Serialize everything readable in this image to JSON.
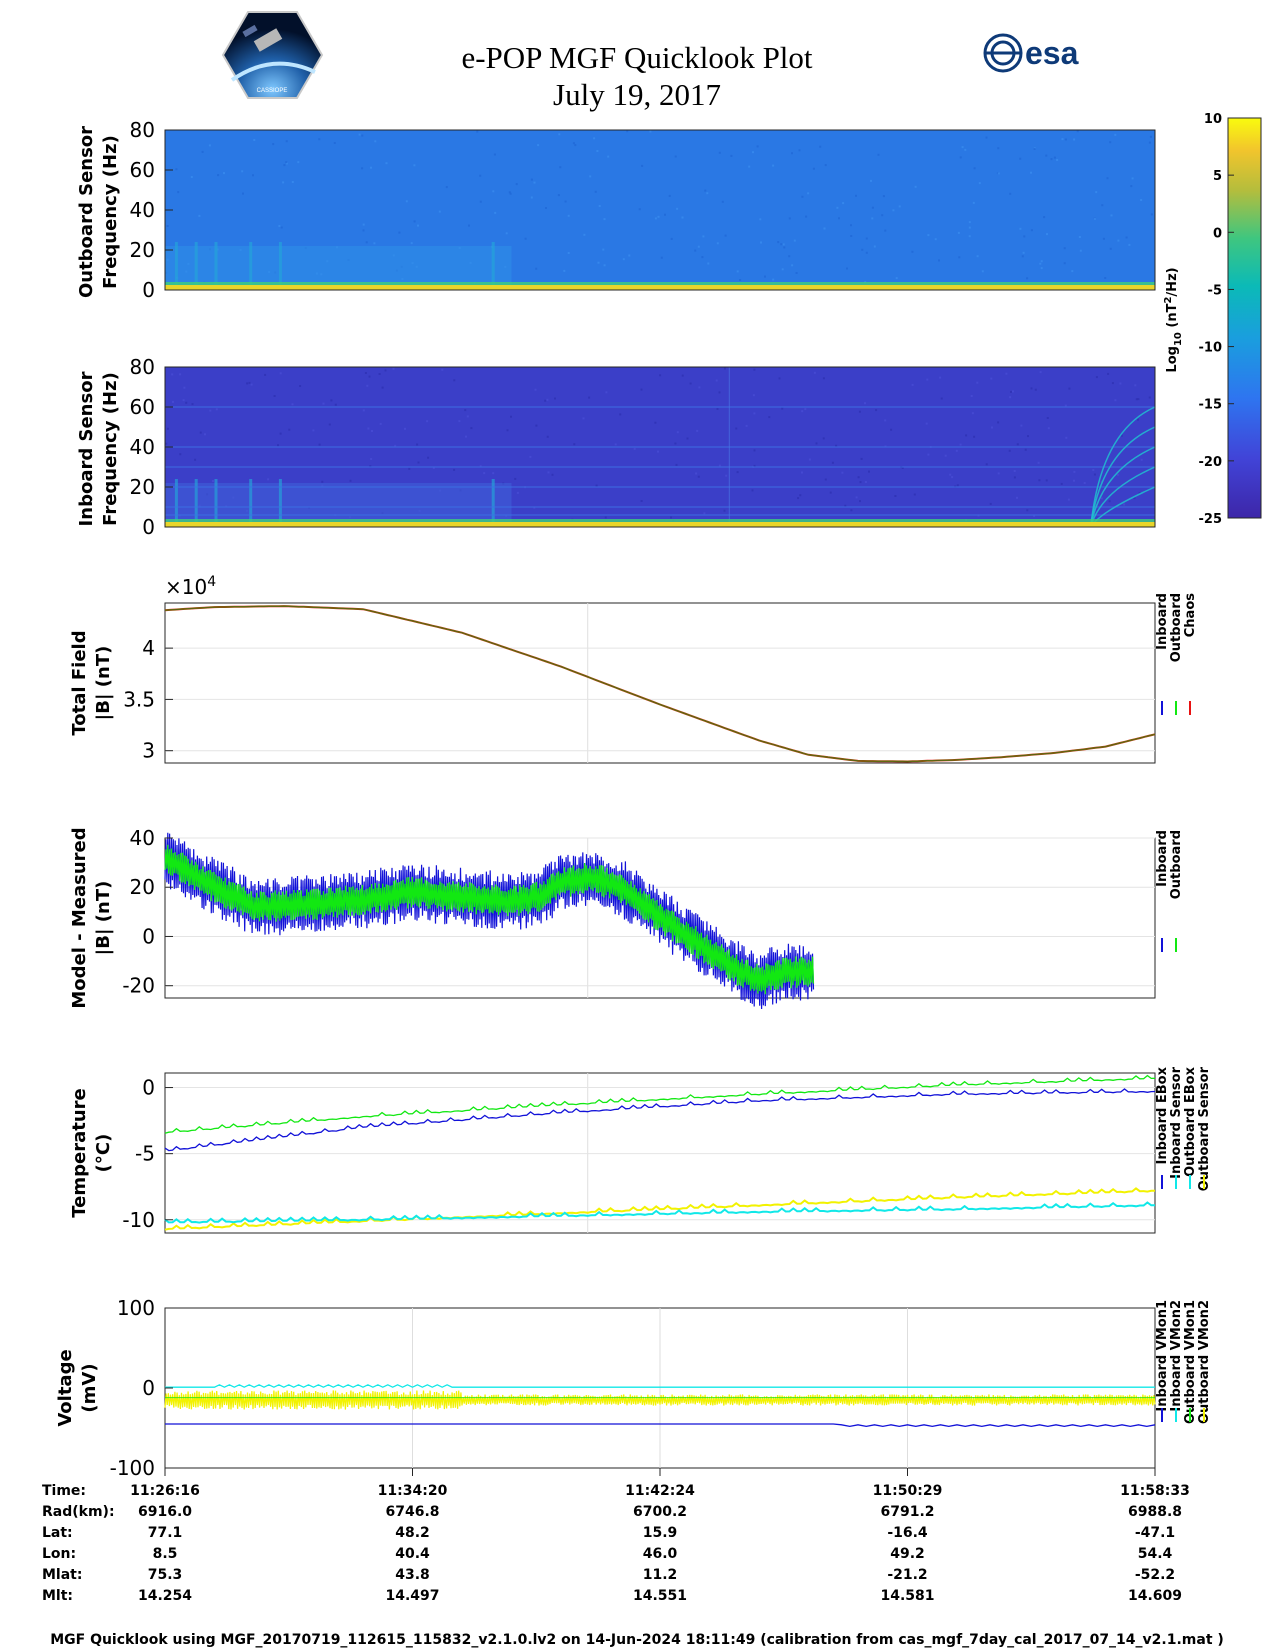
{
  "header": {
    "title": "e-POP MGF Quicklook Plot",
    "date": "July 19, 2017",
    "esa_logo_text": "esa",
    "cassiope_logo_text": "CASSIOPE"
  },
  "colors": {
    "inboard": "#1212d8",
    "outboard": "#12e812",
    "chaos": "#e81212",
    "cyan": "#10e8e8",
    "yellow": "#f2f200",
    "spec_outboard_bg": "#2a78e4",
    "spec_inboard_bg": "#3b3fc8"
  },
  "colorbar": {
    "label_main": "Log",
    "label_sub": "10",
    "label_rest": " (nT",
    "label_sup": "2",
    "label_end": "/Hz)",
    "ticks": [
      "10",
      "5",
      "0",
      "-5",
      "-10",
      "-15",
      "-20",
      "-25"
    ],
    "range": [
      -25,
      10
    ]
  },
  "chart_data": [
    {
      "type": "heatmap",
      "name": "outboard-spectrogram",
      "ylabel_line1": "Outboard Sensor",
      "ylabel_line2": "Frequency (Hz)",
      "ylim": [
        0,
        80
      ],
      "yticks": [
        "80",
        "60",
        "40",
        "20",
        "0"
      ],
      "background_level": -11,
      "low_freq_level": 8
    },
    {
      "type": "heatmap",
      "name": "inboard-spectrogram",
      "ylabel_line1": "Inboard Sensor",
      "ylabel_line2": "Frequency (Hz)",
      "ylim": [
        0,
        80
      ],
      "yticks": [
        "80",
        "60",
        "40",
        "20",
        "0"
      ],
      "background_level": -22,
      "low_freq_level": 8
    },
    {
      "type": "line",
      "name": "total-field",
      "ylabel_line1": "Total Field",
      "ylabel_line2": "|B| (nT)",
      "exponent_base": "×10",
      "exponent_power": "4",
      "ylim": [
        2.88,
        4.44
      ],
      "yticks": [
        "4",
        "3.5",
        "3"
      ],
      "legend": [
        "Inboard",
        "Outboard",
        "Chaos"
      ],
      "x": [
        0,
        0.05,
        0.12,
        0.2,
        0.3,
        0.4,
        0.5,
        0.6,
        0.65,
        0.7,
        0.75,
        0.8,
        0.85,
        0.9,
        0.95,
        1.0
      ],
      "y": [
        4.37,
        4.4,
        4.41,
        4.38,
        4.15,
        3.82,
        3.45,
        3.1,
        2.96,
        2.9,
        2.895,
        2.91,
        2.94,
        2.98,
        3.04,
        3.16
      ]
    },
    {
      "type": "line",
      "name": "model-minus-measured",
      "ylabel_line1": "Model - Measured",
      "ylabel_line2": "|B| (nT)",
      "ylim": [
        -25,
        40
      ],
      "yticks": [
        "40",
        "20",
        "0",
        "-20"
      ],
      "legend": [
        "Inboard",
        "Outboard"
      ],
      "x_end": 0.655,
      "x": [
        0,
        0.04,
        0.09,
        0.15,
        0.2,
        0.25,
        0.3,
        0.35,
        0.38,
        0.4,
        0.43,
        0.46,
        0.5,
        0.55,
        0.58,
        0.6,
        0.62,
        0.655
      ],
      "y": [
        32,
        22,
        12,
        13,
        15,
        18,
        16,
        14,
        16,
        22,
        24,
        20,
        8,
        -6,
        -14,
        -18,
        -15,
        -14
      ]
    },
    {
      "type": "line",
      "name": "temperature",
      "ylabel_line1": "Temperature",
      "ylabel_line2": "(°C)",
      "ylim": [
        -11,
        1.1
      ],
      "yticks": [
        "0",
        "-5",
        "-10"
      ],
      "legend": [
        "Inboard EBox",
        "Inboard Sensor",
        "Outboard EBox",
        "Outboard Sensor"
      ],
      "series": [
        {
          "name": "Inboard EBox",
          "x": [
            0,
            0.2,
            0.4,
            0.6,
            0.8,
            1.0
          ],
          "y": [
            -3.4,
            -2.2,
            -1.3,
            -0.5,
            0.2,
            0.7
          ]
        },
        {
          "name": "Inboard Sensor",
          "x": [
            0,
            0.2,
            0.4,
            0.6,
            0.8,
            1.0
          ],
          "y": [
            -4.8,
            -3.0,
            -1.9,
            -1.0,
            -0.5,
            -0.3
          ]
        },
        {
          "name": "Outboard EBox",
          "x": [
            0,
            0.2,
            0.4,
            0.6,
            0.8,
            1.0
          ],
          "y": [
            -10.7,
            -10.1,
            -9.5,
            -8.9,
            -8.3,
            -7.8
          ]
        },
        {
          "name": "Outboard Sensor",
          "x": [
            0,
            0.2,
            0.4,
            0.6,
            0.8,
            1.0
          ],
          "y": [
            -10.2,
            -10.0,
            -9.7,
            -9.4,
            -9.2,
            -8.9
          ]
        }
      ]
    },
    {
      "type": "line",
      "name": "voltage",
      "ylabel_line1": "Voltage",
      "ylabel_line2": "(mV)",
      "ylim": [
        -100,
        100
      ],
      "yticks": [
        "100",
        "0",
        "-100"
      ],
      "legend": [
        "Inboard VMon1",
        "Inboard VMon2",
        "Outboard VMon1",
        "Outboard VMon2"
      ],
      "series": [
        {
          "name": "Inboard VMon1",
          "level": -45,
          "late_level": -48
        },
        {
          "name": "Inboard VMon2",
          "level": -12
        },
        {
          "name": "Outboard VMon1",
          "level": 1
        },
        {
          "name": "Outboard VMon2",
          "level": -15
        }
      ]
    }
  ],
  "orbit_table": {
    "row_labels": [
      "Time:",
      "Rad(km):",
      "Lat:",
      "Lon:",
      "Mlat:",
      "Mlt:"
    ],
    "columns": [
      [
        "11:26:16",
        "6916.0",
        "77.1",
        "8.5",
        "75.3",
        "14.254"
      ],
      [
        "11:34:20",
        "6746.8",
        "48.2",
        "40.4",
        "43.8",
        "14.497"
      ],
      [
        "11:42:24",
        "6700.2",
        "15.9",
        "46.0",
        "11.2",
        "14.551"
      ],
      [
        "11:50:29",
        "6791.2",
        "-16.4",
        "49.2",
        "-21.2",
        "14.581"
      ],
      [
        "11:58:33",
        "6988.8",
        "-47.1",
        "54.4",
        "-52.2",
        "14.609"
      ]
    ]
  },
  "footer": "MGF Quicklook using MGF_20170719_112615_115832_v2.1.0.lv2 on 14-Jun-2024 18:11:49 (calibration from cas_mgf_7day_cal_2017_07_14_v2.1.mat )"
}
